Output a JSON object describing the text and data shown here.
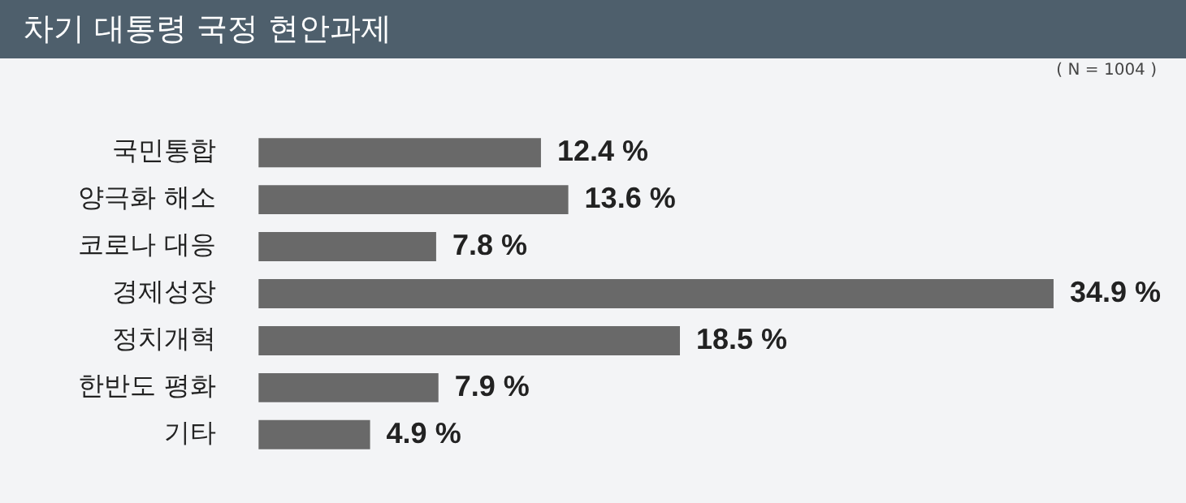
{
  "chart_data": {
    "type": "bar",
    "orientation": "horizontal",
    "title": "차기 대통령 국정 현안과제",
    "annotations": [
      "( N = 1004 )"
    ],
    "categories": [
      "국민통합",
      "양극화 해소",
      "코로나 대응",
      "경제성장",
      "정치개혁",
      "한반도 평화",
      "기타"
    ],
    "values": [
      12.4,
      13.6,
      7.8,
      34.9,
      18.5,
      7.9,
      4.9
    ],
    "color": "#696969",
    "value_labels": [
      "12.4 %",
      "13.6 %",
      "7.8 %",
      "34.9 %",
      "18.5 %",
      "7.9 %",
      "4.9 %"
    ],
    "tick_labels": "y"
  }
}
